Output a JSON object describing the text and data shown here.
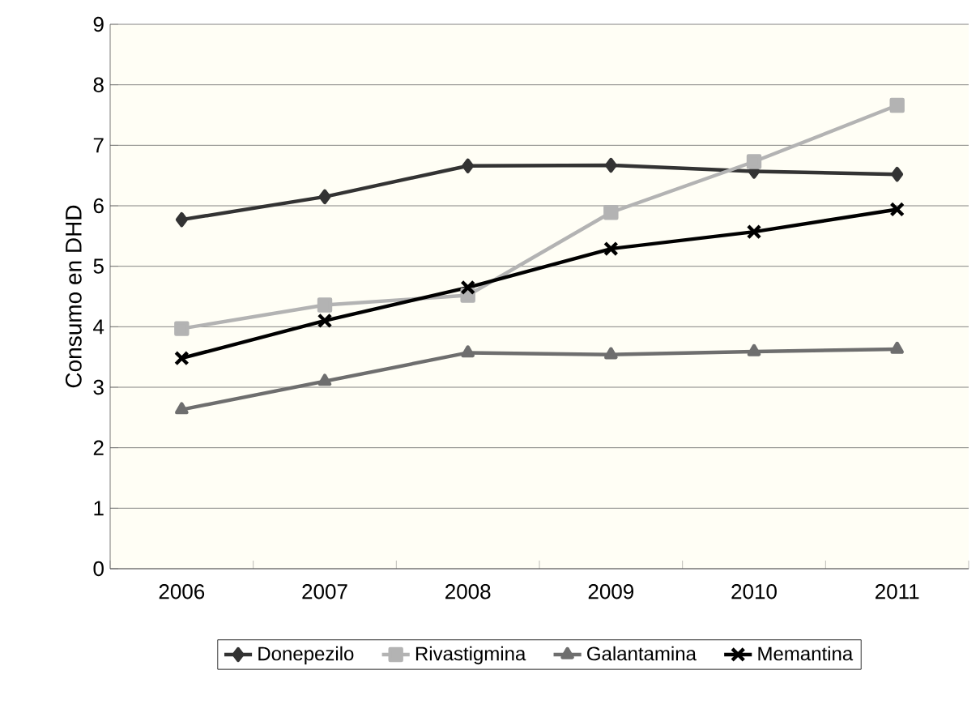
{
  "chart_data": {
    "type": "line",
    "ylabel": "Consumo en DHD",
    "categories": [
      "2006",
      "2007",
      "2008",
      "2009",
      "2010",
      "2011"
    ],
    "series": [
      {
        "name": "Donepezilo",
        "color": "#333333",
        "marker": "diamond",
        "values": [
          5.77,
          6.15,
          6.66,
          6.67,
          6.57,
          6.52
        ]
      },
      {
        "name": "Rivastigmina",
        "color": "#b3b3b3",
        "marker": "square",
        "values": [
          3.97,
          4.36,
          4.52,
          5.89,
          6.73,
          7.66
        ]
      },
      {
        "name": "Galantamina",
        "color": "#6e6e6e",
        "marker": "triangle",
        "values": [
          2.63,
          3.1,
          3.57,
          3.54,
          3.59,
          3.63
        ]
      },
      {
        "name": "Memantina",
        "color": "#000000",
        "marker": "cross",
        "values": [
          3.48,
          4.1,
          4.65,
          5.29,
          5.57,
          5.94
        ]
      }
    ],
    "ylim": [
      0,
      9
    ],
    "yticks": [
      0,
      1,
      2,
      3,
      4,
      5,
      6,
      7,
      8,
      9
    ],
    "grid": "y",
    "legend": "bottom",
    "line_style": "solid"
  }
}
